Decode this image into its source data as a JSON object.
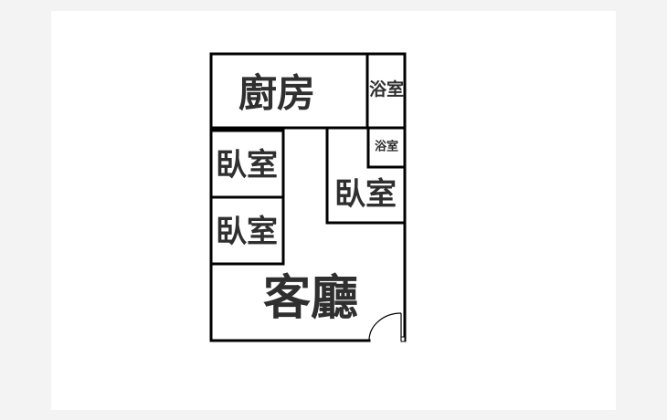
{
  "floor_plan": {
    "rooms": [
      {
        "id": "kitchen",
        "label": "廚房"
      },
      {
        "id": "bathroom-1",
        "label": "浴室"
      },
      {
        "id": "bathroom-2",
        "label": "浴室"
      },
      {
        "id": "bedroom-1",
        "label": "臥室"
      },
      {
        "id": "bedroom-2",
        "label": "臥室"
      },
      {
        "id": "bedroom-3",
        "label": "臥室"
      },
      {
        "id": "living-room",
        "label": "客廳"
      }
    ]
  },
  "colors": {
    "wall": "#000000",
    "label": "#2f2f2f",
    "sheet": "#ffffff",
    "background": "#f3f3f3"
  }
}
